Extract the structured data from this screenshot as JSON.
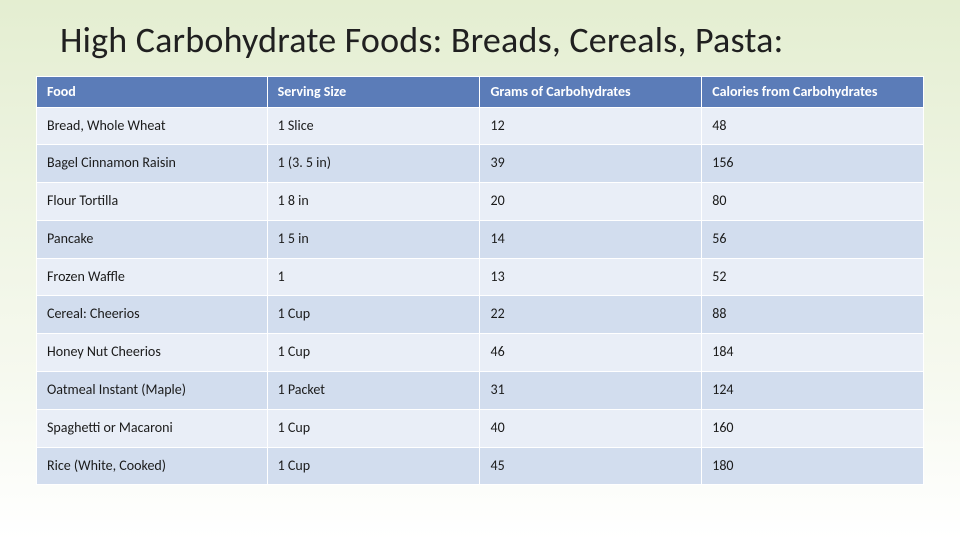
{
  "slide": {
    "title": "High Carbohydrate Foods: Breads, Cereals, Pasta:",
    "background_gradient_top": "#e4eed1",
    "background_gradient_bottom": "#ffffff"
  },
  "table": {
    "type": "table",
    "header_bg": "#5b7cb8",
    "header_text_color": "#ffffff",
    "row_stripe_a": "#e9eef7",
    "row_stripe_b": "#d2ddee",
    "border_color": "#ffffff",
    "header_fontsize": 14,
    "cell_fontsize": 14,
    "columns": [
      {
        "key": "food",
        "label": "Food",
        "width_pct": 26
      },
      {
        "key": "serving",
        "label": "Serving Size",
        "width_pct": 24
      },
      {
        "key": "carbs",
        "label": "Grams of Carbohydrates",
        "width_pct": 25
      },
      {
        "key": "cal",
        "label": "Calories from Carbohydrates",
        "width_pct": 25
      }
    ],
    "rows": [
      {
        "food": "Bread, Whole Wheat",
        "serving": "1 Slice",
        "carbs": "12",
        "cal": "48"
      },
      {
        "food": "Bagel Cinnamon Raisin",
        "serving": "1 (3. 5 in)",
        "carbs": "39",
        "cal": "156"
      },
      {
        "food": "Flour Tortilla",
        "serving": "1 8 in",
        "carbs": "20",
        "cal": "80"
      },
      {
        "food": "Pancake",
        "serving": "1 5 in",
        "carbs": "14",
        "cal": "56"
      },
      {
        "food": "Frozen Waffle",
        "serving": "1",
        "carbs": "13",
        "cal": "52"
      },
      {
        "food": "Cereal: Cheerios",
        "serving": "1 Cup",
        "carbs": "22",
        "cal": "88"
      },
      {
        "food": "Honey Nut Cheerios",
        "serving": "1 Cup",
        "carbs": "46",
        "cal": "184"
      },
      {
        "food": "Oatmeal Instant (Maple)",
        "serving": "1 Packet",
        "carbs": "31",
        "cal": "124"
      },
      {
        "food": "Spaghetti or Macaroni",
        "serving": "1 Cup",
        "carbs": "40",
        "cal": "160"
      },
      {
        "food": "Rice (White, Cooked)",
        "serving": "1 Cup",
        "carbs": "45",
        "cal": "180"
      }
    ]
  }
}
